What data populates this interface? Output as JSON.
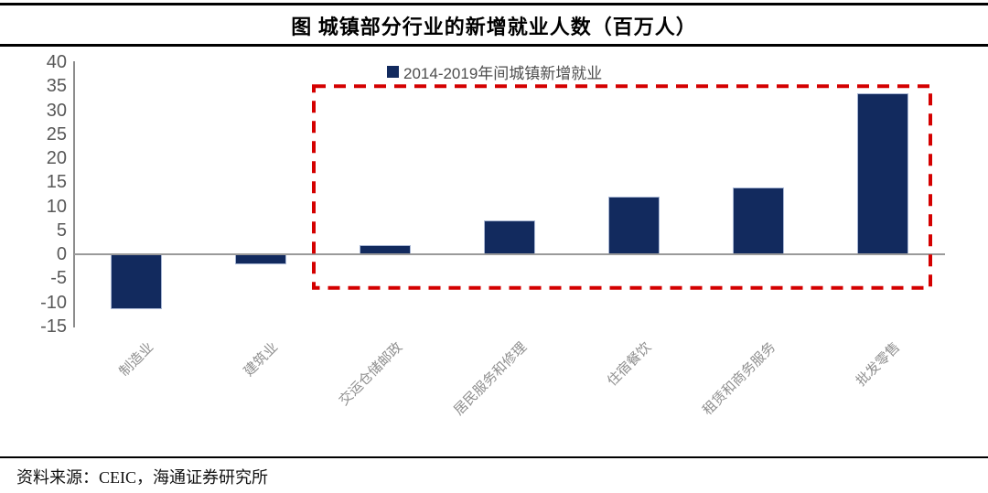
{
  "footer": {
    "source": "资料来源：CEIC，海通证券研究所"
  },
  "chart_data": {
    "type": "bar",
    "title": "图 城镇部分行业的新增就业人数（百万人）",
    "legend": [
      "2014-2019年间城镇新增就业"
    ],
    "legend_position": "top-center",
    "categories": [
      "制造业",
      "建筑业",
      "交运仓储邮政",
      "居民服务和修理",
      "住宿餐饮",
      "租赁和商务服务",
      "批发零售"
    ],
    "values": [
      -11.5,
      -2,
      2,
      7,
      12,
      14,
      33.5
    ],
    "unit": "百万人",
    "ylim": [
      -15,
      40
    ],
    "yticks": [
      40,
      35,
      30,
      25,
      20,
      15,
      10,
      5,
      0,
      -5,
      -10,
      -15
    ],
    "grid": false,
    "colors": {
      "bar_fill": "#122a5e",
      "bar_border": "#a9b7d4",
      "axis_line": "#8c8c8c",
      "zero_line": "#9a9a9a",
      "tick_text": "#595959",
      "category_text": "#8f8f8f",
      "annotation_red": "#d40000"
    },
    "annotation": {
      "type": "dashed-rect",
      "category_span": [
        2,
        6
      ],
      "y_range": [
        -7,
        35
      ]
    }
  }
}
